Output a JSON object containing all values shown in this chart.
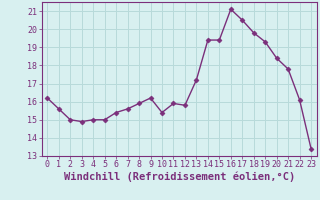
{
  "x": [
    0,
    1,
    2,
    3,
    4,
    5,
    6,
    7,
    8,
    9,
    10,
    11,
    12,
    13,
    14,
    15,
    16,
    17,
    18,
    19,
    20,
    21,
    22,
    23
  ],
  "y": [
    16.2,
    15.6,
    15.0,
    14.9,
    15.0,
    15.0,
    15.4,
    15.6,
    15.9,
    16.2,
    15.4,
    15.9,
    15.8,
    17.2,
    19.4,
    19.4,
    21.1,
    20.5,
    19.8,
    19.3,
    18.4,
    17.8,
    16.1,
    13.4
  ],
  "line_color": "#7b2f7b",
  "marker": "D",
  "marker_size": 2.5,
  "bg_color": "#d8f0f0",
  "grid_color": "#b8dada",
  "xlabel": "Windchill (Refroidissement éolien,°C)",
  "ylim": [
    13,
    21.5
  ],
  "xlim": [
    -0.5,
    23.5
  ],
  "yticks": [
    13,
    14,
    15,
    16,
    17,
    18,
    19,
    20,
    21
  ],
  "xticks": [
    0,
    1,
    2,
    3,
    4,
    5,
    6,
    7,
    8,
    9,
    10,
    11,
    12,
    13,
    14,
    15,
    16,
    17,
    18,
    19,
    20,
    21,
    22,
    23
  ],
  "tick_fontsize": 6,
  "xlabel_fontsize": 7.5,
  "spine_color": "#7b2f7b",
  "line_width": 1.0
}
